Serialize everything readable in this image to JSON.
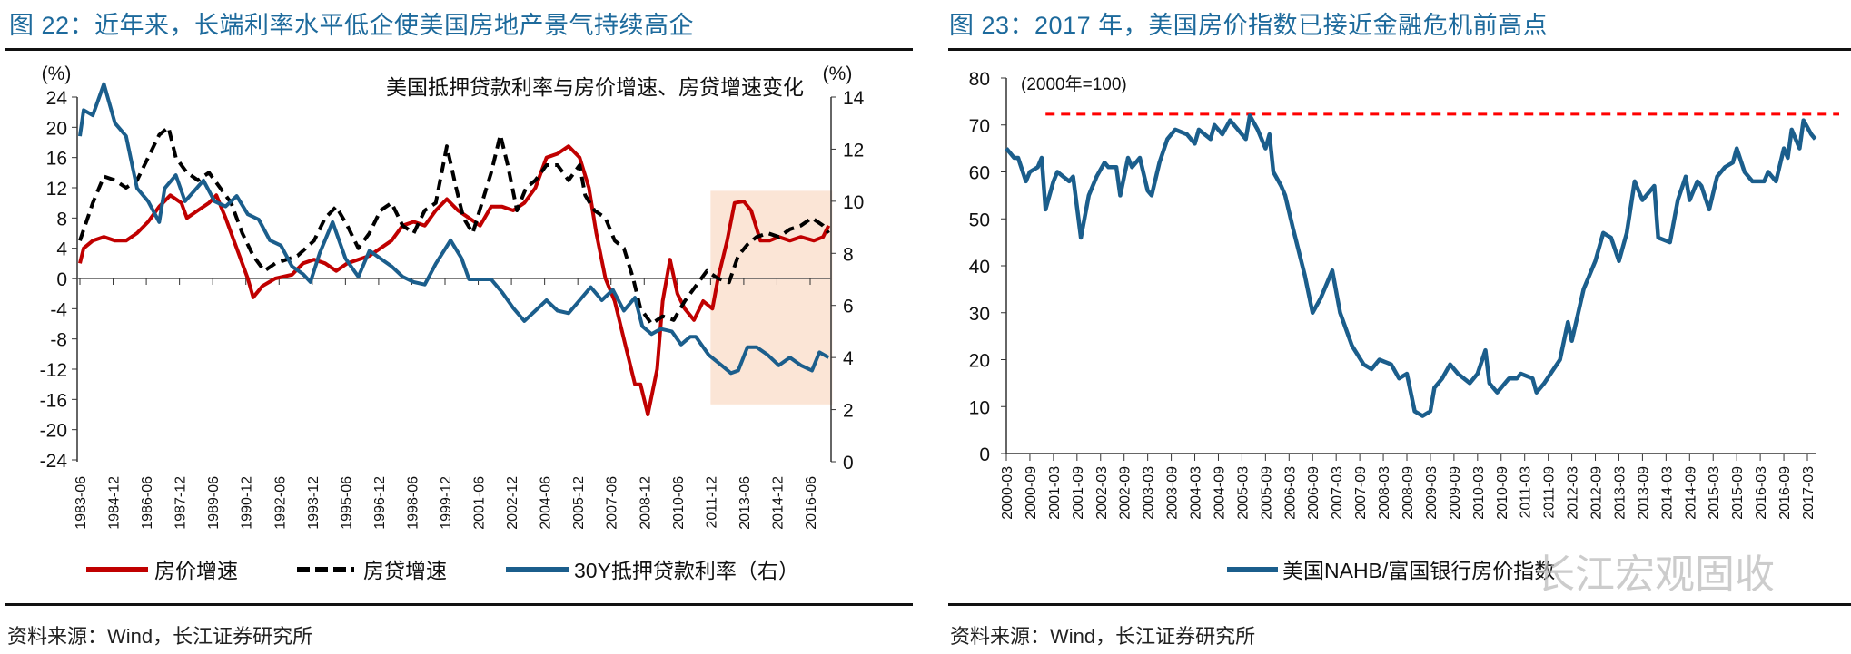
{
  "left_panel": {
    "figure_title": "图 22：近年来，长端利率水平低企使美国房地产景气持续高企",
    "source": "资料来源：Wind，长江证券研究所"
  },
  "right_panel": {
    "figure_title": "图 23：2017 年，美国房价指数已接近金融危机前高点",
    "source": "资料来源：Wind，长江证券研究所",
    "watermark": "长江宏观固收"
  },
  "chart_data": [
    {
      "type": "line",
      "title": "美国抵押贷款利率与房价增速、房贷增速变化",
      "ylabel": "(%)",
      "y2label": "(%)",
      "ylim": [
        -24,
        24
      ],
      "yticks": [
        -24,
        -20,
        -16,
        -12,
        -8,
        -4,
        0,
        4,
        8,
        12,
        16,
        20,
        24
      ],
      "y2lim": [
        0,
        14
      ],
      "y2ticks": [
        0,
        2,
        4,
        6,
        8,
        10,
        12,
        14
      ],
      "xlim": [
        "1983-06",
        "2017-05"
      ],
      "xticks": [
        "1983-06",
        "1984-12",
        "1986-06",
        "1987-12",
        "1989-06",
        "1990-12",
        "1992-06",
        "1993-12",
        "1995-06",
        "1996-12",
        "1998-06",
        "1999-12",
        "2001-06",
        "2002-12",
        "2004-06",
        "2005-12",
        "2007-06",
        "2008-12",
        "2010-06",
        "2011-12",
        "2013-06",
        "2014-12",
        "2016-06"
      ],
      "highlight_region": {
        "x": [
          "2011-12",
          "2017-06"
        ],
        "y2": [
          2.2,
          10.4
        ],
        "color": "#fbe5d6"
      },
      "legend_position": "bottom",
      "series": [
        {
          "name": "房价增速",
          "axis": "left",
          "color": "#c00000",
          "style": "solid",
          "x": [
            "1983-06",
            "1983-08",
            "1984-01",
            "1984-07",
            "1985-01",
            "1985-07",
            "1986-01",
            "1986-07",
            "1987-01",
            "1987-07",
            "1988-01",
            "1988-04",
            "1988-10",
            "1989-04",
            "1989-08",
            "1990-01",
            "1990-07",
            "1991-01",
            "1991-04",
            "1991-09",
            "1992-04",
            "1993-01",
            "1993-07",
            "1994-01",
            "1994-07",
            "1995-01",
            "1995-07",
            "1996-01",
            "1996-07",
            "1997-01",
            "1997-07",
            "1998-01",
            "1998-07",
            "1999-01",
            "1999-07",
            "2000-01",
            "2000-07",
            "2001-01",
            "2001-07",
            "2002-01",
            "2002-07",
            "2003-01",
            "2003-07",
            "2004-01",
            "2004-07",
            "2005-01",
            "2005-07",
            "2006-01",
            "2006-06",
            "2006-10",
            "2007-03",
            "2007-08",
            "2008-01",
            "2008-07",
            "2008-10",
            "2009-02",
            "2009-07",
            "2009-10",
            "2010-02",
            "2010-06",
            "2010-10",
            "2011-03",
            "2011-08",
            "2012-01",
            "2012-04",
            "2012-09",
            "2013-01",
            "2013-06",
            "2013-10",
            "2014-03",
            "2014-08",
            "2015-01",
            "2015-07",
            "2016-01",
            "2016-08",
            "2017-01",
            "2017-04"
          ],
          "values": [
            2,
            4,
            5,
            5.5,
            5,
            5,
            6,
            7.5,
            9.5,
            11,
            10,
            8,
            9,
            10,
            11,
            8,
            4,
            0,
            -2.5,
            -1,
            0,
            0.5,
            2,
            2.5,
            2,
            1,
            2,
            2.5,
            3,
            4,
            5,
            7,
            7.5,
            7,
            9,
            10.5,
            9,
            8,
            7,
            9.5,
            9.5,
            9,
            10,
            12,
            16,
            16.5,
            17.5,
            16,
            12,
            6,
            0,
            -3,
            -8,
            -14,
            -14,
            -18,
            -12,
            -3,
            2.5,
            -2,
            -4,
            -5.5,
            -3,
            -4,
            0,
            5,
            10,
            10.2,
            9,
            5,
            5,
            5.5,
            5,
            5.5,
            5,
            5.5,
            7
          ]
        },
        {
          "name": "房贷增速",
          "axis": "left",
          "color": "#000000",
          "style": "dashed",
          "x": [
            "1983-06",
            "1984-01",
            "1984-07",
            "1985-01",
            "1985-07",
            "1986-01",
            "1986-07",
            "1987-01",
            "1987-06",
            "1987-10",
            "1988-04",
            "1988-10",
            "1989-04",
            "1989-10",
            "1990-04",
            "1990-10",
            "1991-04",
            "1991-10",
            "1992-04",
            "1992-10",
            "1993-04",
            "1994-01",
            "1994-07",
            "1995-01",
            "1995-07",
            "1996-01",
            "1996-07",
            "1997-01",
            "1997-07",
            "1998-01",
            "1998-07",
            "1999-01",
            "1999-07",
            "2000-01",
            "2000-06",
            "2000-10",
            "2001-03",
            "2001-08",
            "2002-01",
            "2002-06",
            "2002-10",
            "2003-03",
            "2003-08",
            "2004-01",
            "2004-07",
            "2005-01",
            "2005-07",
            "2006-01",
            "2006-04",
            "2006-09",
            "2007-03",
            "2007-08",
            "2008-01",
            "2008-06",
            "2008-10",
            "2009-04",
            "2009-10",
            "2010-04",
            "2010-10",
            "2011-04",
            "2011-10",
            "2012-04",
            "2012-10",
            "2013-03",
            "2013-08",
            "2014-01",
            "2014-07",
            "2015-01",
            "2015-07",
            "2016-01",
            "2016-07",
            "2017-01",
            "2017-04"
          ],
          "values": [
            5,
            10,
            13.5,
            13,
            12,
            13,
            16,
            19,
            20,
            16,
            14,
            13,
            14,
            12,
            10,
            6,
            3,
            1,
            2,
            2.5,
            3,
            5,
            8,
            9.5,
            7,
            4,
            6,
            9,
            10,
            7,
            6,
            9,
            10,
            17.5,
            12,
            8,
            6,
            10,
            14,
            19,
            15,
            9,
            12,
            13,
            15,
            15,
            13,
            15,
            11,
            9,
            8,
            5,
            4,
            0,
            -4,
            -6,
            -5,
            -5.5,
            -3,
            -1,
            1,
            0,
            -0.5,
            3,
            4.5,
            5.5,
            6,
            5.5,
            6.5,
            7,
            8,
            7,
            6
          ]
        },
        {
          "name": "30Y抵押贷款利率（右）",
          "axis": "right",
          "color": "#1b5e8c",
          "style": "solid",
          "x": [
            "1983-06",
            "1983-08",
            "1984-01",
            "1984-07",
            "1985-01",
            "1985-07",
            "1986-01",
            "1986-07",
            "1987-01",
            "1987-04",
            "1987-10",
            "1988-03",
            "1988-08",
            "1989-01",
            "1989-07",
            "1990-01",
            "1990-07",
            "1991-01",
            "1991-07",
            "1992-01",
            "1992-07",
            "1993-01",
            "1993-07",
            "1993-11",
            "1994-04",
            "1994-11",
            "1995-06",
            "1996-01",
            "1996-07",
            "1997-01",
            "1997-07",
            "1998-01",
            "1998-07",
            "1999-01",
            "1999-07",
            "2000-03",
            "2000-09",
            "2001-01",
            "2001-07",
            "2002-01",
            "2002-07",
            "2003-01",
            "2003-07",
            "2004-01",
            "2004-07",
            "2005-01",
            "2005-07",
            "2006-01",
            "2006-07",
            "2007-01",
            "2007-07",
            "2008-01",
            "2008-07",
            "2008-11",
            "2009-04",
            "2009-09",
            "2010-03",
            "2010-08",
            "2011-01",
            "2011-04",
            "2011-11",
            "2012-06",
            "2012-11",
            "2013-03",
            "2013-08",
            "2014-01",
            "2014-07",
            "2015-01",
            "2015-07",
            "2016-01",
            "2016-07",
            "2016-11",
            "2017-04"
          ],
          "values": [
            12.5,
            13.5,
            13.3,
            14.5,
            13,
            12.5,
            10.5,
            10,
            9.2,
            10.5,
            11,
            10,
            10.4,
            10.8,
            10,
            9.8,
            10.2,
            9.5,
            9.3,
            8.5,
            8.3,
            7.5,
            7.2,
            6.9,
            8,
            9.2,
            7.8,
            7.1,
            8.1,
            7.8,
            7.5,
            7.1,
            6.9,
            6.8,
            7.6,
            8.5,
            7.8,
            7,
            7,
            7,
            6.5,
            5.9,
            5.4,
            5.8,
            6.2,
            5.8,
            5.7,
            6.2,
            6.7,
            6.2,
            6.6,
            5.8,
            6.3,
            5.2,
            4.9,
            5.1,
            5,
            4.5,
            4.8,
            4.8,
            4.1,
            3.7,
            3.4,
            3.5,
            4.4,
            4.4,
            4.1,
            3.7,
            4,
            3.7,
            3.5,
            4.2,
            4
          ]
        }
      ]
    },
    {
      "type": "line",
      "annotation": "(2000年=100)",
      "ylim": [
        0,
        80
      ],
      "yticks": [
        0,
        10,
        20,
        30,
        40,
        50,
        60,
        70,
        80
      ],
      "xlim": [
        "2000-03",
        "2017-03"
      ],
      "xticks": [
        "2000-03",
        "2000-09",
        "2001-03",
        "2001-09",
        "2002-03",
        "2002-09",
        "2003-03",
        "2003-09",
        "2004-03",
        "2004-09",
        "2005-03",
        "2005-09",
        "2006-03",
        "2006-09",
        "2007-03",
        "2007-09",
        "2008-03",
        "2008-09",
        "2009-03",
        "2009-09",
        "2010-03",
        "2010-09",
        "2011-03",
        "2011-09",
        "2012-03",
        "2012-09",
        "2013-03",
        "2013-09",
        "2014-03",
        "2014-09",
        "2015-03",
        "2015-09",
        "2016-03",
        "2016-09",
        "2017-03"
      ],
      "reference_line": {
        "value": 72.3,
        "color": "#ff0000",
        "style": "dashed",
        "x_start": "2001-01"
      },
      "legend_position": "bottom",
      "series": [
        {
          "name": "美国NAHB/富国银行房价指数",
          "color": "#1b5e8c",
          "x": [
            "2000-03",
            "2000-05",
            "2000-06",
            "2000-08",
            "2000-09",
            "2000-11",
            "2000-12",
            "2001-01",
            "2001-03",
            "2001-04",
            "2001-07",
            "2001-08",
            "2001-10",
            "2001-12",
            "2002-02",
            "2002-04",
            "2002-05",
            "2002-07",
            "2002-08",
            "2002-10",
            "2002-11",
            "2003-01",
            "2003-03",
            "2003-04",
            "2003-06",
            "2003-08",
            "2003-10",
            "2004-01",
            "2004-03",
            "2004-04",
            "2004-07",
            "2004-08",
            "2004-10",
            "2004-12",
            "2005-02",
            "2005-04",
            "2005-05",
            "2005-07",
            "2005-09",
            "2005-10",
            "2005-11",
            "2006-01",
            "2006-02",
            "2006-04",
            "2006-07",
            "2006-09",
            "2006-11",
            "2007-02",
            "2007-04",
            "2007-07",
            "2007-10",
            "2007-12",
            "2008-02",
            "2008-05",
            "2008-07",
            "2008-09",
            "2008-11",
            "2009-01",
            "2009-03",
            "2009-04",
            "2009-06",
            "2009-08",
            "2009-10",
            "2010-01",
            "2010-03",
            "2010-05",
            "2010-06",
            "2010-08",
            "2010-11",
            "2011-01",
            "2011-02",
            "2011-05",
            "2011-06",
            "2011-08",
            "2011-12",
            "2012-02",
            "2012-03",
            "2012-06",
            "2012-09",
            "2012-11",
            "2013-01",
            "2013-03",
            "2013-05",
            "2013-07",
            "2013-09",
            "2013-12",
            "2014-01",
            "2014-04",
            "2014-06",
            "2014-08",
            "2014-09",
            "2014-11",
            "2014-12",
            "2015-02",
            "2015-04",
            "2015-06",
            "2015-08",
            "2015-09",
            "2015-11",
            "2016-01",
            "2016-04",
            "2016-05",
            "2016-07",
            "2016-09",
            "2016-10",
            "2016-11",
            "2017-01",
            "2017-02",
            "2017-04",
            "2017-05"
          ],
          "values": [
            65,
            63,
            63,
            58,
            60,
            61,
            63,
            52,
            58,
            60,
            58,
            59,
            46,
            55,
            59,
            62,
            61,
            61,
            55,
            63,
            61,
            63,
            56,
            55,
            62,
            67,
            69,
            68,
            66,
            69,
            67,
            70,
            68,
            71,
            69,
            67,
            72,
            69,
            65,
            68,
            60,
            57,
            55,
            48,
            38,
            30,
            33,
            39,
            30,
            23,
            19,
            18,
            20,
            19,
            16,
            17,
            9,
            8,
            9,
            14,
            16,
            19,
            17,
            15,
            17,
            22,
            15,
            13,
            16,
            16,
            17,
            16,
            13,
            15,
            20,
            28,
            24,
            35,
            41,
            47,
            46,
            41,
            47,
            58,
            54,
            57,
            46,
            45,
            54,
            59,
            54,
            58,
            57,
            52,
            59,
            61,
            62,
            65,
            60,
            58,
            58,
            60,
            58,
            65,
            63,
            69,
            65,
            71,
            68,
            67
          ]
        }
      ]
    }
  ]
}
